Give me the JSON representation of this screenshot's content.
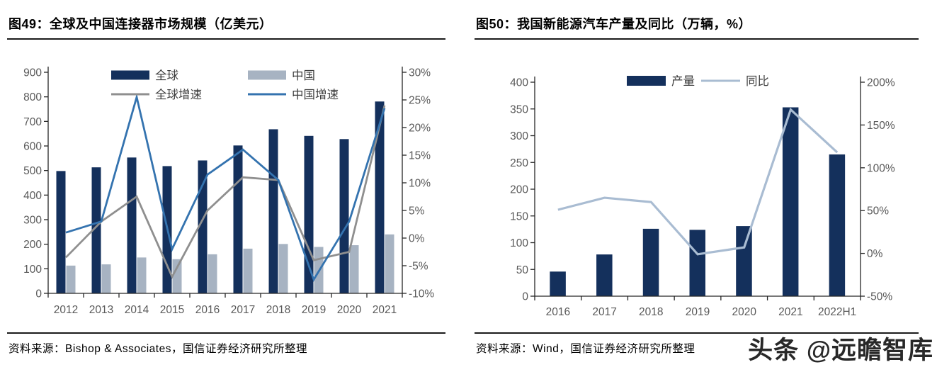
{
  "panels": [
    {
      "title": "图49：全球及中国连接器市场规模（亿美元）",
      "source": "资料来源：Bishop & Associates，国信证券经济研究所整理"
    },
    {
      "title": "图50：我国新能源汽车产量及同比（万辆，%）",
      "source": "资料来源：Wind，国信证券经济研究所整理"
    }
  ],
  "watermark": "头条 @远瞻智库",
  "colors": {
    "bar_dark_navy": "#14305c",
    "bar_light_gray_blue": "#a7b3c2",
    "line_gray": "#8f8f8f",
    "line_blue": "#3473af",
    "line_light_blue": "#a9bcd2",
    "axis": "#262626",
    "tick_label": "#595959",
    "legend_label": "#3d3d3d"
  },
  "chart_data": [
    {
      "type": "bar",
      "subtype": "bar+line combo, dual axis",
      "title": "全球及中国连接器市场规模（亿美元）",
      "categories": [
        "2012",
        "2013",
        "2014",
        "2015",
        "2016",
        "2017",
        "2018",
        "2019",
        "2020",
        "2021"
      ],
      "series": [
        {
          "name": "全球",
          "kind": "bar",
          "axis": "left",
          "color": "#14305c",
          "values": [
            498,
            513,
            553,
            518,
            541,
            602,
            668,
            641,
            628,
            781
          ]
        },
        {
          "name": "中国",
          "kind": "bar",
          "axis": "left",
          "color": "#a7b3c2",
          "values": [
            113,
            118,
            146,
            139,
            159,
            182,
            201,
            189,
            196,
            240
          ]
        },
        {
          "name": "全球增速",
          "kind": "line",
          "axis": "right",
          "color": "#8f8f8f",
          "unit": "%",
          "values": [
            -3.5,
            3,
            7.5,
            -7,
            5,
            11,
            10.5,
            -4,
            -2.5,
            24
          ]
        },
        {
          "name": "中国增速",
          "kind": "line",
          "axis": "right",
          "color": "#3473af",
          "unit": "%",
          "values": [
            1,
            3,
            25.5,
            -2,
            11.5,
            16,
            10.5,
            -7.5,
            3,
            23.5
          ]
        }
      ],
      "left_axis": {
        "min": 0,
        "max": 900,
        "step": 100,
        "ticks": [
          "0",
          "100",
          "200",
          "300",
          "400",
          "500",
          "600",
          "700",
          "800",
          "900"
        ]
      },
      "right_axis": {
        "min": -10,
        "max": 30,
        "step": 5,
        "ticks": [
          "-10%",
          "-5%",
          "0%",
          "5%",
          "10%",
          "15%",
          "20%",
          "25%",
          "30%"
        ]
      },
      "grid": false,
      "legend_position": "top"
    },
    {
      "type": "bar",
      "subtype": "bar+line combo, dual axis",
      "title": "我国新能源汽车产量及同比（万辆，%）",
      "categories": [
        "2016",
        "2017",
        "2018",
        "2019",
        "2020",
        "2021",
        "2022H1"
      ],
      "series": [
        {
          "name": "产量",
          "kind": "bar",
          "axis": "left",
          "color": "#14305c",
          "values": [
            46,
            78,
            126,
            124,
            131,
            353,
            265
          ]
        },
        {
          "name": "同比",
          "kind": "line",
          "axis": "right",
          "color": "#a9bcd2",
          "unit": "%",
          "values": [
            51,
            65,
            60,
            -1,
            7,
            168,
            118
          ]
        }
      ],
      "left_axis": {
        "min": 0,
        "max": 400,
        "step": 50,
        "ticks": [
          "0",
          "50",
          "100",
          "150",
          "200",
          "250",
          "300",
          "350",
          "400"
        ]
      },
      "right_axis": {
        "min": -50,
        "max": 200,
        "step": 50,
        "ticks": [
          "-50%",
          "0%",
          "50%",
          "100%",
          "150%",
          "200%"
        ]
      },
      "grid": false,
      "legend_position": "top"
    }
  ]
}
